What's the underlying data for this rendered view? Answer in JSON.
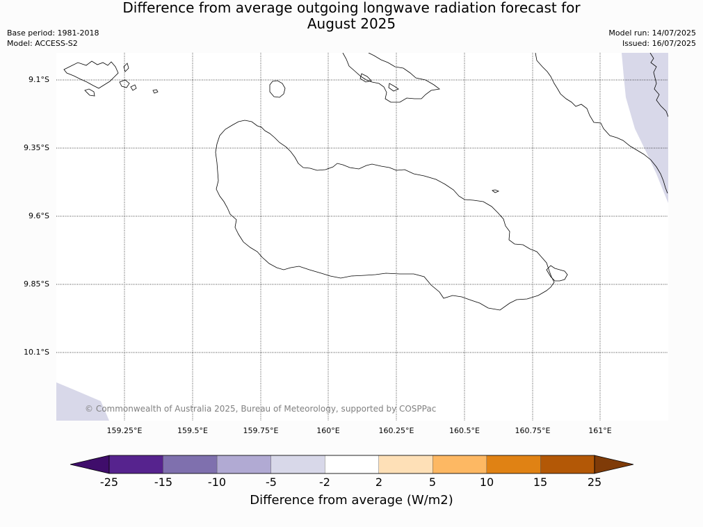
{
  "title": {
    "line1": "Difference from average outgoing longwave radiation forecast for",
    "line2": "August 2025"
  },
  "meta_left": {
    "base_period": "Base period: 1981-2018",
    "model": "Model: ACCESS-S2"
  },
  "meta_right": {
    "model_run": "Model run: 14/07/2025",
    "issued": "Issued: 16/07/2025"
  },
  "map": {
    "latitude_labels": [
      "9.1°S",
      "9.35°S",
      "9.6°S",
      "9.85°S",
      "10.1°S"
    ],
    "longitude_labels": [
      "159.25°E",
      "159.5°E",
      "159.75°E",
      "160°E",
      "160.25°E",
      "160.5°E",
      "160.75°E",
      "161°E"
    ],
    "copyright": "© Commonwealth of Australia 2025, Bureau of Meteorology, supported by COSPPac",
    "anomaly_fill_color": "#d8d8e9",
    "anomaly_fill_category": "-5 to -2 W/m2"
  },
  "colorbar": {
    "label": "Difference from average (W/m2)",
    "ticks": [
      "-25",
      "-15",
      "-10",
      "-5",
      "-2",
      "2",
      "5",
      "10",
      "15",
      "25"
    ],
    "colors": [
      "#3f0d6b",
      "#56238e",
      "#7f70ae",
      "#b1aad3",
      "#d8d8e9",
      "#ffffff",
      "#fee0b7",
      "#fdb863",
      "#e08214",
      "#b35806",
      "#7f3b08"
    ]
  }
}
